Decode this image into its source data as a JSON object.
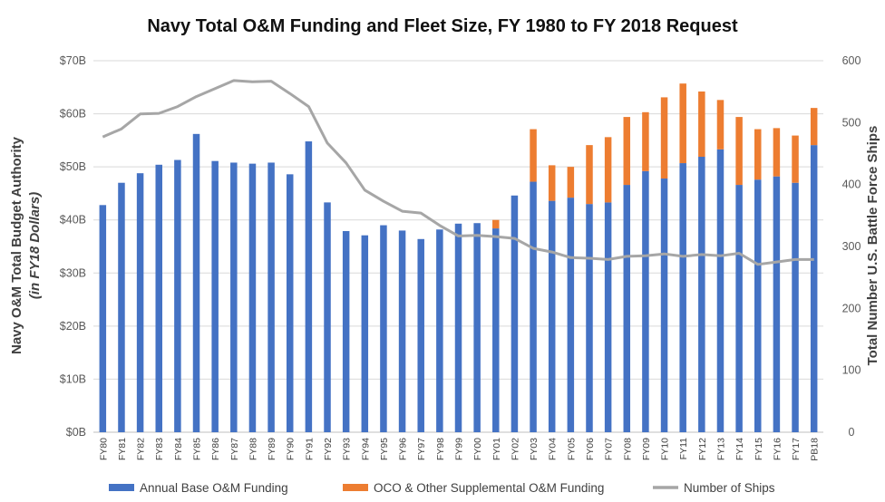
{
  "chart_data": {
    "type": "bar",
    "title": "Navy Total O&M Funding and Fleet Size, FY 1980 to FY 2018 Request",
    "ylabel_line1": "Navy O&M Total Budget Authority",
    "ylabel_line2": "(in FY18 Dollars)",
    "y2label": "Total Number U.S. Battle Force Ships",
    "ylim": [
      0,
      70
    ],
    "y2lim": [
      0,
      600
    ],
    "yticks": [
      "$0B",
      "$10B",
      "$20B",
      "$30B",
      "$40B",
      "$50B",
      "$60B",
      "$70B"
    ],
    "y2ticks": [
      "0",
      "100",
      "200",
      "300",
      "400",
      "500",
      "600"
    ],
    "categories": [
      "FY80",
      "FY81",
      "FY82",
      "FY83",
      "FY84",
      "FY85",
      "FY86",
      "FY87",
      "FY88",
      "FY89",
      "FY90",
      "FY91",
      "FY92",
      "FY93",
      "FY94",
      "FY95",
      "FY96",
      "FY97",
      "FY98",
      "FY99",
      "FY00",
      "FY01",
      "FY02",
      "FY03",
      "FY04",
      "FY05",
      "FY06",
      "FY07",
      "FY08",
      "FY09",
      "FY10",
      "FY11",
      "FY12",
      "FY13",
      "FY14",
      "FY15",
      "FY16",
      "FY17",
      "PB18"
    ],
    "series": [
      {
        "name": "Annual Base O&M Funding",
        "color": "#4472C4",
        "values": [
          42.8,
          47.0,
          48.8,
          50.4,
          51.3,
          56.2,
          51.1,
          50.8,
          50.6,
          50.8,
          48.6,
          54.8,
          43.3,
          37.9,
          37.1,
          39.0,
          38.0,
          36.4,
          38.2,
          39.3,
          39.4,
          38.4,
          44.6,
          47.2,
          43.6,
          44.2,
          43.0,
          43.3,
          46.6,
          49.2,
          47.8,
          50.7,
          51.9,
          53.3,
          46.6,
          47.6,
          48.2,
          47.0,
          54.1
        ]
      },
      {
        "name": "OCO & Other Supplemental O&M Funding",
        "color": "#ED7D31",
        "values": [
          0,
          0,
          0,
          0,
          0,
          0,
          0,
          0,
          0,
          0,
          0,
          0,
          0,
          0,
          0,
          0,
          0,
          0,
          0,
          0,
          0,
          1.6,
          0,
          9.9,
          6.7,
          5.8,
          11.1,
          12.3,
          12.8,
          11.1,
          15.3,
          15.0,
          12.3,
          9.3,
          12.8,
          9.5,
          9.1,
          8.9,
          7.0
        ]
      },
      {
        "name": "Number of Ships",
        "color": "#A6A6A6",
        "axis": "right",
        "values": [
          477,
          490,
          514,
          515,
          526,
          542,
          555,
          568,
          566,
          567,
          547,
          526,
          467,
          435,
          391,
          373,
          357,
          354,
          334,
          317,
          318,
          316,
          313,
          297,
          291,
          282,
          281,
          279,
          284,
          285,
          288,
          284,
          287,
          285,
          289,
          271,
          275,
          279,
          279
        ]
      }
    ]
  }
}
